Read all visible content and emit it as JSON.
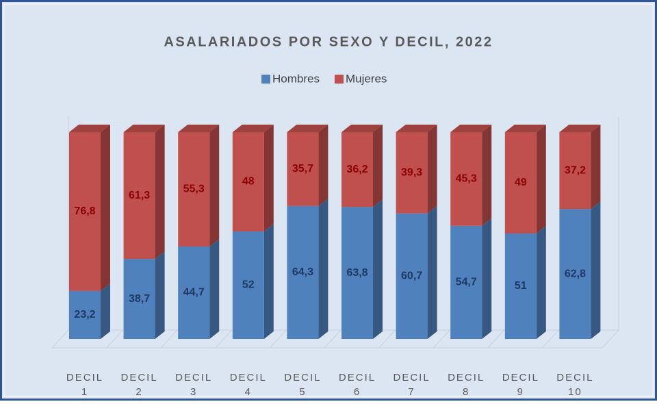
{
  "chart_data": {
    "type": "bar",
    "stacked": true,
    "title": "ASALARIADOS POR SEXO Y DECIL, 2022",
    "categories": [
      "DECIL 1",
      "DECIL 2",
      "DECIL 3",
      "DECIL 4",
      "DECIL 5",
      "DECIL 6",
      "DECIL 7",
      "DECIL 8",
      "DECIL 9",
      "DECIL 10"
    ],
    "series": [
      {
        "name": "Hombres",
        "color": "#4f81bd",
        "values": [
          23.2,
          38.7,
          44.7,
          52,
          64.3,
          63.8,
          60.7,
          54.7,
          51,
          62.8
        ],
        "value_labels": [
          "23,2",
          "38,7",
          "44,7",
          "52",
          "64,3",
          "63,8",
          "60,7",
          "54,7",
          "51",
          "62,8"
        ]
      },
      {
        "name": "Mujeres",
        "color": "#c0504d",
        "values": [
          76.8,
          61.3,
          55.3,
          48,
          35.7,
          36.2,
          39.3,
          45.3,
          49,
          37.2
        ],
        "value_labels": [
          "76,8",
          "61,3",
          "55,3",
          "48",
          "35,7",
          "36,2",
          "39,3",
          "45,3",
          "49",
          "37,2"
        ]
      }
    ],
    "ylim": [
      0,
      100
    ],
    "legend": "top"
  }
}
